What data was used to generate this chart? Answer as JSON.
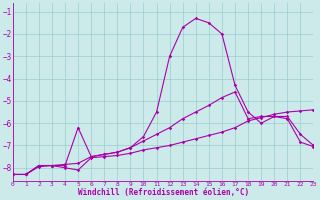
{
  "xlabel": "Windchill (Refroidissement éolien,°C)",
  "xlim": [
    0,
    23
  ],
  "ylim": [
    -8.6,
    -0.6
  ],
  "yticks": [
    -8,
    -7,
    -6,
    -5,
    -4,
    -3,
    -2,
    -1
  ],
  "xticks": [
    0,
    1,
    2,
    3,
    4,
    5,
    6,
    7,
    8,
    9,
    10,
    11,
    12,
    13,
    14,
    15,
    16,
    17,
    18,
    19,
    20,
    21,
    22,
    23
  ],
  "bg_color": "#cceaea",
  "line_color": "#aa00aa",
  "grid_color": "#99cccc",
  "line1_x": [
    0,
    1,
    2,
    3,
    4,
    5,
    6,
    7,
    8,
    9,
    10,
    11,
    12,
    13,
    14,
    15,
    16,
    17,
    18,
    19,
    20,
    21,
    22,
    23
  ],
  "line1_y": [
    -8.3,
    -8.3,
    -7.9,
    -7.9,
    -7.9,
    -6.2,
    -7.5,
    -7.4,
    -7.3,
    -7.1,
    -6.8,
    -6.5,
    -6.2,
    -5.8,
    -5.5,
    -5.2,
    -4.85,
    -4.6,
    -5.8,
    -5.7,
    -5.7,
    -5.7,
    -6.5,
    -7.0
  ],
  "line2_x": [
    0,
    1,
    2,
    3,
    4,
    5,
    6,
    7,
    8,
    9,
    10,
    11,
    12,
    13,
    14,
    15,
    16,
    17,
    18,
    19,
    20,
    21,
    22,
    23
  ],
  "line2_y": [
    -8.3,
    -8.3,
    -7.95,
    -7.9,
    -7.85,
    -7.8,
    -7.5,
    -7.4,
    -7.3,
    -7.1,
    -6.6,
    -5.5,
    -3.0,
    -1.7,
    -1.3,
    -1.5,
    -2.0,
    -4.3,
    -5.5,
    -6.0,
    -5.7,
    -5.8,
    -6.85,
    -7.05
  ],
  "line3_x": [
    0,
    1,
    2,
    3,
    4,
    5,
    6,
    7,
    8,
    9,
    10,
    11,
    12,
    13,
    14,
    15,
    16,
    17,
    18,
    19,
    20,
    21,
    22,
    23
  ],
  "line3_y": [
    -8.3,
    -8.3,
    -7.9,
    -7.9,
    -8.0,
    -8.1,
    -7.55,
    -7.5,
    -7.45,
    -7.35,
    -7.2,
    -7.1,
    -7.0,
    -6.85,
    -6.7,
    -6.55,
    -6.4,
    -6.2,
    -5.9,
    -5.75,
    -5.6,
    -5.5,
    -5.45,
    -5.4
  ]
}
